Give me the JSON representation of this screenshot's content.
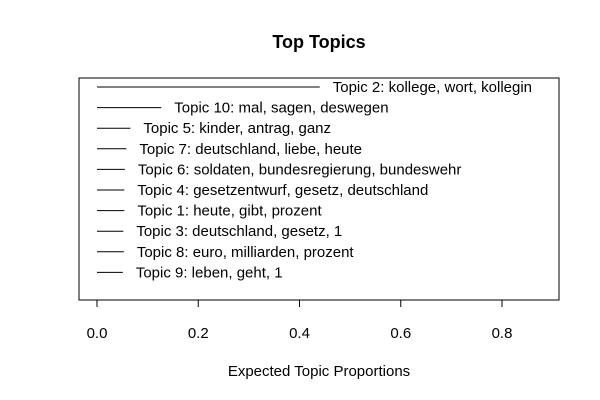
{
  "chart_data": {
    "type": "bar",
    "orientation": "horizontal",
    "title": "Top Topics",
    "xlabel": "Expected Topic Proportions",
    "ylabel": "",
    "xlim": [
      0,
      0.9
    ],
    "x_ticks": [
      0.0,
      0.2,
      0.4,
      0.6,
      0.8
    ],
    "x_tick_labels": [
      "0.0",
      "0.2",
      "0.4",
      "0.6",
      "0.8"
    ],
    "grid": false,
    "categories": [
      "Topic 2: kollege, wort, kollegin",
      "Topic 10: mal, sagen, deswegen",
      "Topic 5: kinder, antrag, ganz",
      "Topic 7: deutschland, liebe, heute",
      "Topic 6: soldaten, bundesregierung, bundeswehr",
      "Topic 4: gesetzentwurf, gesetz, deutschland",
      "Topic 1: heute, gibt, prozent",
      "Topic 3: deutschland, gesetz, 1",
      "Topic 8: euro, milliarden, prozent",
      "Topic 9: leben, geht, 1"
    ],
    "values": [
      0.44,
      0.127,
      0.066,
      0.058,
      0.055,
      0.054,
      0.054,
      0.052,
      0.053,
      0.051
    ]
  }
}
